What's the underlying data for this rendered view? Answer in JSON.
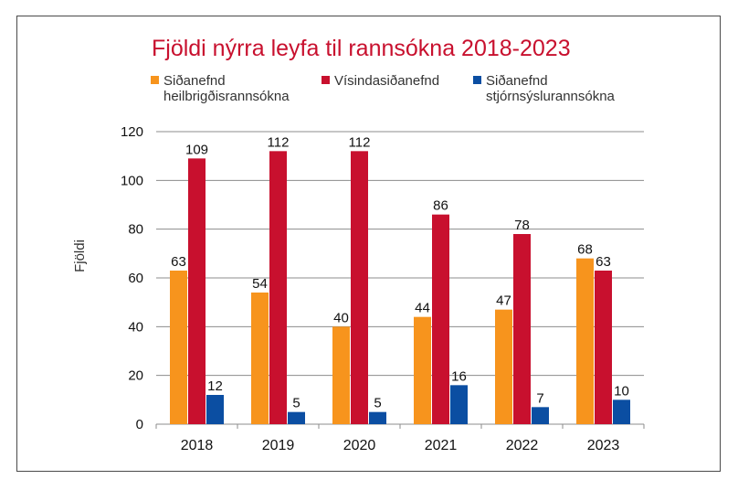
{
  "chart_data": {
    "type": "bar",
    "title": "Fjöldi nýrra leyfa til rannsókna 2018-2023",
    "xlabel": "",
    "ylabel": "Fjöldi",
    "ylim": [
      0,
      120
    ],
    "yticks": [
      0,
      20,
      40,
      60,
      80,
      100,
      120
    ],
    "grid": true,
    "legend_position": "top",
    "categories": [
      "2018",
      "2019",
      "2020",
      "2021",
      "2022",
      "2023"
    ],
    "series": [
      {
        "name_lines": [
          "Siðanefnd",
          "heilbrigðisrannsókna"
        ],
        "color": "#f7941d",
        "values": [
          63,
          54,
          40,
          44,
          47,
          68
        ]
      },
      {
        "name_lines": [
          "Vísindasiðanefnd"
        ],
        "color": "#c8102e",
        "values": [
          109,
          112,
          112,
          86,
          78,
          63
        ]
      },
      {
        "name_lines": [
          "Siðanefnd",
          "stjórnsýslurannsókna"
        ],
        "color": "#0b4ea2",
        "values": [
          12,
          5,
          5,
          16,
          7,
          10
        ]
      }
    ],
    "colors": {
      "grid": "#8c8c8c",
      "axis": "#8c8c8c",
      "title": "#c8102e"
    }
  }
}
